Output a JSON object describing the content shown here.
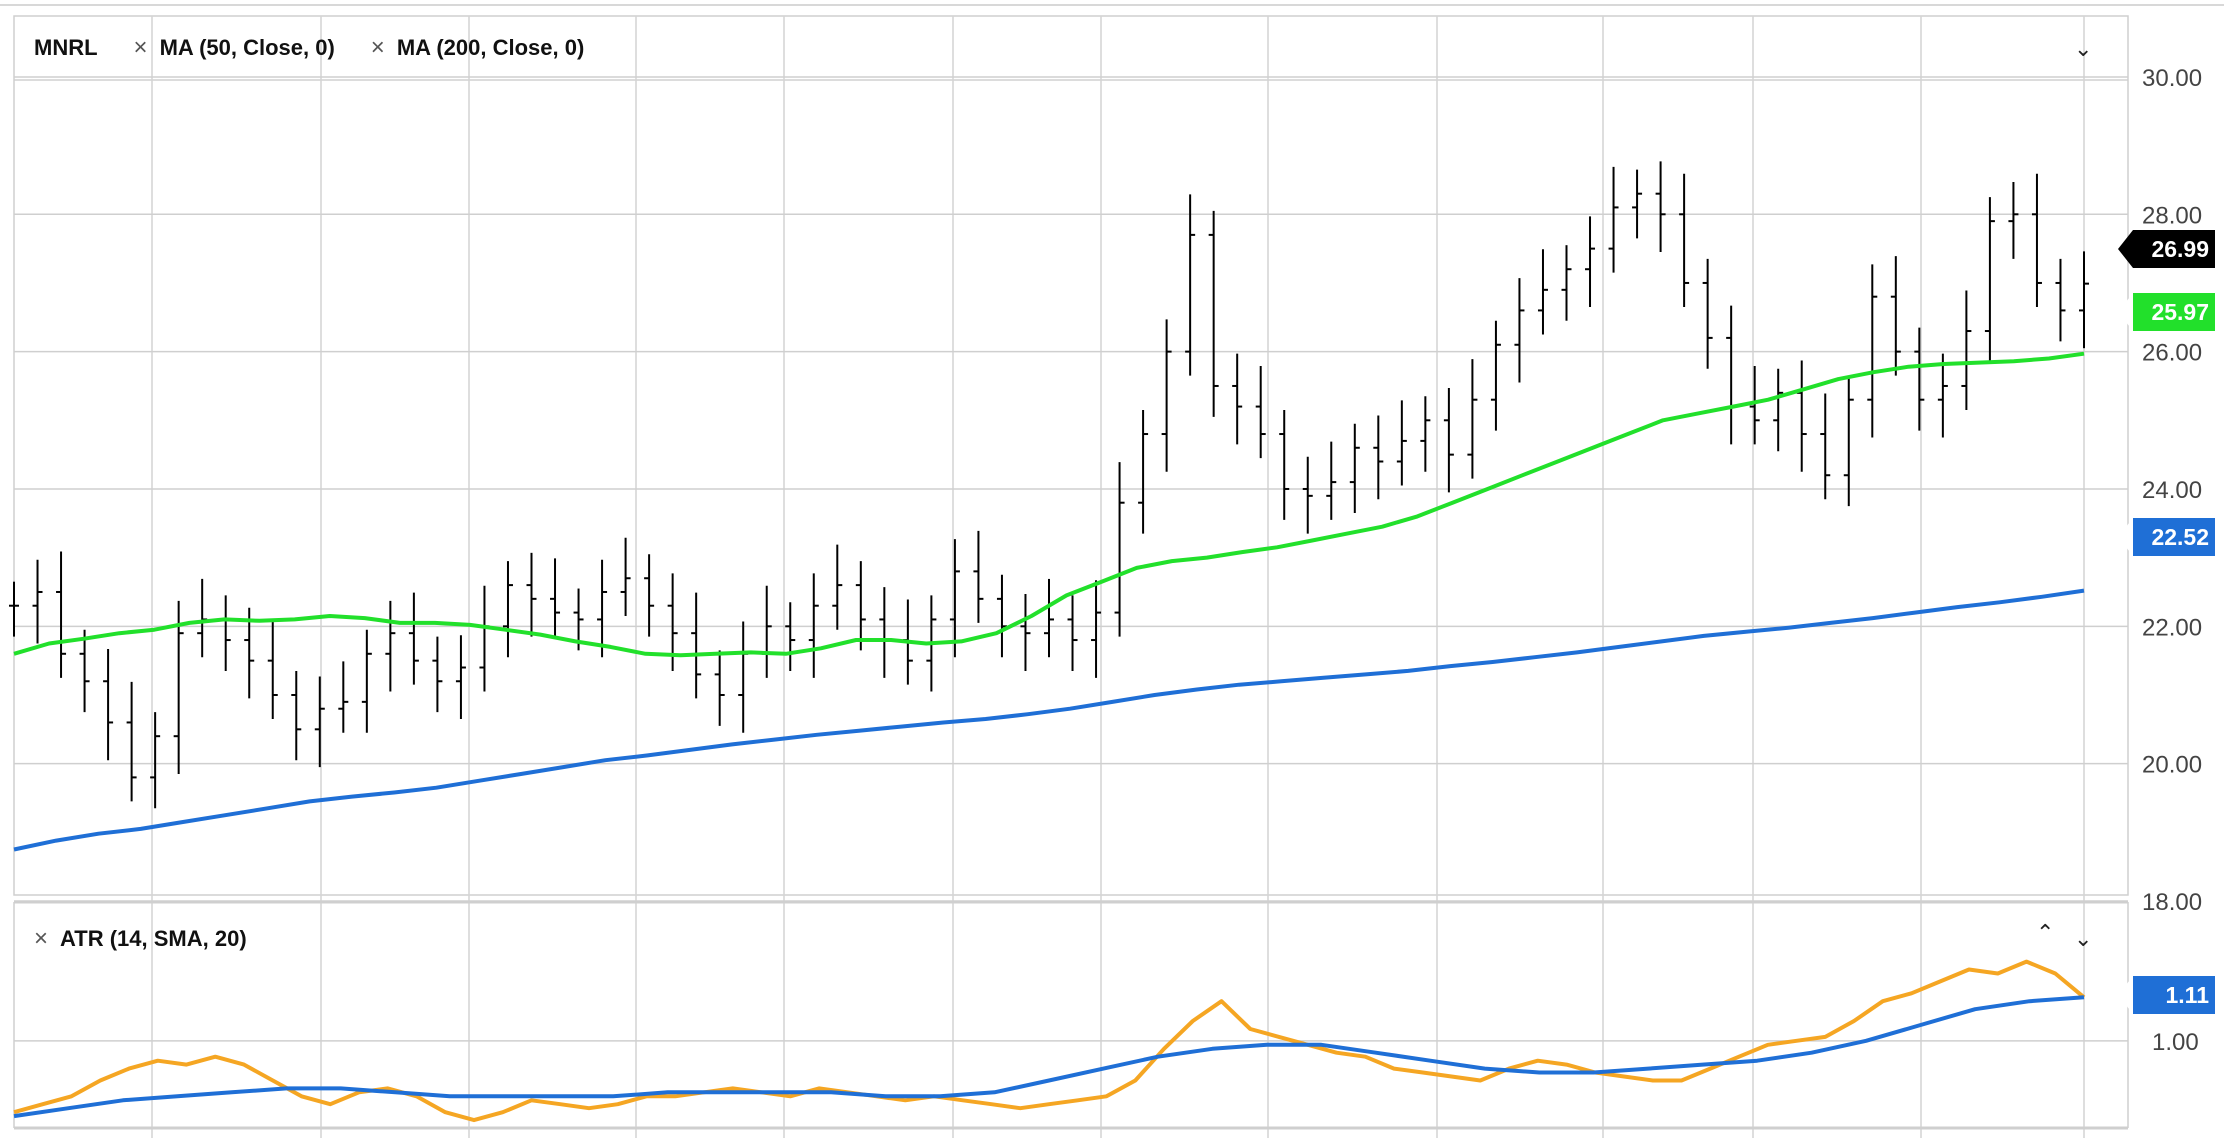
{
  "chart_data": [
    {
      "type": "ohlc",
      "symbol": "MNRL",
      "legend": [
        {
          "label": "MA (50, Close, 0)",
          "color": "#22e02b"
        },
        {
          "label": "MA (200, Close, 0)",
          "color": "#1f6fd6"
        }
      ],
      "ylim": [
        18,
        30.8
      ],
      "yticks": [
        "18.00",
        "20.00",
        "22.00",
        "24.00",
        "26.00",
        "28.00",
        "30.00"
      ],
      "last_values": [
        {
          "label": "26.99",
          "value": 26.99,
          "color": "#000000"
        },
        {
          "label": "25.97",
          "value": 25.97,
          "color": "#22e02b"
        },
        {
          "label": "22.52",
          "value": 22.52,
          "color": "#1f6fd6"
        }
      ],
      "bars_weekly_close": [
        22.3,
        22.5,
        21.6,
        21.2,
        20.6,
        19.8,
        20.4,
        21.9,
        22.1,
        21.8,
        21.5,
        21.0,
        20.5,
        20.8,
        20.9,
        21.6,
        21.9,
        21.5,
        21.2,
        21.4,
        22.0,
        22.6,
        22.4,
        22.2,
        22.1,
        22.5,
        22.7,
        22.3,
        21.9,
        21.3,
        21.0,
        21.6,
        22.0,
        21.8,
        22.3,
        22.6,
        22.1,
        21.8,
        21.5,
        22.1,
        22.8,
        22.4,
        22.0,
        21.9,
        22.1,
        21.8,
        22.2,
        23.8,
        24.8,
        26.0,
        27.7,
        25.5,
        25.2,
        24.8,
        24.0,
        23.9,
        24.1,
        24.6,
        24.4,
        24.7,
        25.0,
        24.5,
        25.3,
        26.1,
        26.6,
        26.9,
        27.2,
        27.5,
        28.1,
        28.3,
        28.0,
        27.0,
        26.2,
        25.2,
        25.0,
        25.4,
        24.8,
        24.2,
        25.3,
        26.8,
        26.0,
        25.3,
        25.5,
        26.3,
        27.9,
        28.0,
        27.0,
        26.6,
        26.99
      ],
      "ma50": [
        21.6,
        21.75,
        21.82,
        21.9,
        21.95,
        22.05,
        22.1,
        22.08,
        22.1,
        22.15,
        22.12,
        22.05,
        22.05,
        22.02,
        21.95,
        21.88,
        21.78,
        21.7,
        21.6,
        21.58,
        21.6,
        21.62,
        21.6,
        21.68,
        21.8,
        21.8,
        21.75,
        21.78,
        21.9,
        22.15,
        22.45,
        22.65,
        22.85,
        22.95,
        23.0,
        23.08,
        23.15,
        23.25,
        23.35,
        23.45,
        23.6,
        23.8,
        24.0,
        24.2,
        24.4,
        24.6,
        24.8,
        25.0,
        25.1,
        25.2,
        25.3,
        25.45,
        25.6,
        25.7,
        25.78,
        25.82,
        25.84,
        25.86,
        25.9,
        25.97
      ],
      "ma200": [
        18.75,
        18.88,
        18.98,
        19.05,
        19.15,
        19.25,
        19.35,
        19.45,
        19.52,
        19.58,
        19.65,
        19.75,
        19.85,
        19.95,
        20.05,
        20.12,
        20.2,
        20.28,
        20.35,
        20.42,
        20.48,
        20.54,
        20.6,
        20.65,
        20.72,
        20.8,
        20.9,
        21.0,
        21.08,
        21.15,
        21.2,
        21.25,
        21.3,
        21.35,
        21.42,
        21.48,
        21.55,
        21.62,
        21.7,
        21.78,
        21.86,
        21.92,
        21.98,
        22.05,
        22.12,
        22.2,
        22.28,
        22.35,
        22.43,
        22.52
      ]
    },
    {
      "type": "line",
      "indicator": "ATR (14, SMA, 20)",
      "yticks": [
        "1.00"
      ],
      "last_value": {
        "label": "1.11",
        "value": 1.11,
        "color": "#1f6fd6"
      },
      "series": [
        {
          "color": "#f5a623",
          "values": [
            0.82,
            0.84,
            0.86,
            0.9,
            0.93,
            0.95,
            0.94,
            0.96,
            0.94,
            0.9,
            0.86,
            0.84,
            0.87,
            0.88,
            0.86,
            0.82,
            0.8,
            0.82,
            0.85,
            0.84,
            0.83,
            0.84,
            0.86,
            0.86,
            0.87,
            0.88,
            0.87,
            0.86,
            0.88,
            0.87,
            0.86,
            0.85,
            0.86,
            0.85,
            0.84,
            0.83,
            0.84,
            0.85,
            0.86,
            0.9,
            0.98,
            1.05,
            1.1,
            1.03,
            1.01,
            0.99,
            0.97,
            0.96,
            0.93,
            0.92,
            0.91,
            0.9,
            0.93,
            0.95,
            0.94,
            0.92,
            0.91,
            0.9,
            0.9,
            0.93,
            0.96,
            0.99,
            1.0,
            1.01,
            1.05,
            1.1,
            1.12,
            1.15,
            1.18,
            1.17,
            1.2,
            1.17,
            1.11
          ]
        },
        {
          "color": "#1f6fd6",
          "values": [
            0.81,
            0.83,
            0.85,
            0.86,
            0.87,
            0.88,
            0.88,
            0.87,
            0.86,
            0.86,
            0.86,
            0.86,
            0.87,
            0.87,
            0.87,
            0.87,
            0.86,
            0.86,
            0.87,
            0.9,
            0.93,
            0.96,
            0.98,
            0.99,
            0.99,
            0.97,
            0.95,
            0.93,
            0.92,
            0.92,
            0.93,
            0.94,
            0.95,
            0.97,
            1.0,
            1.04,
            1.08,
            1.1,
            1.11
          ]
        }
      ]
    }
  ]
}
